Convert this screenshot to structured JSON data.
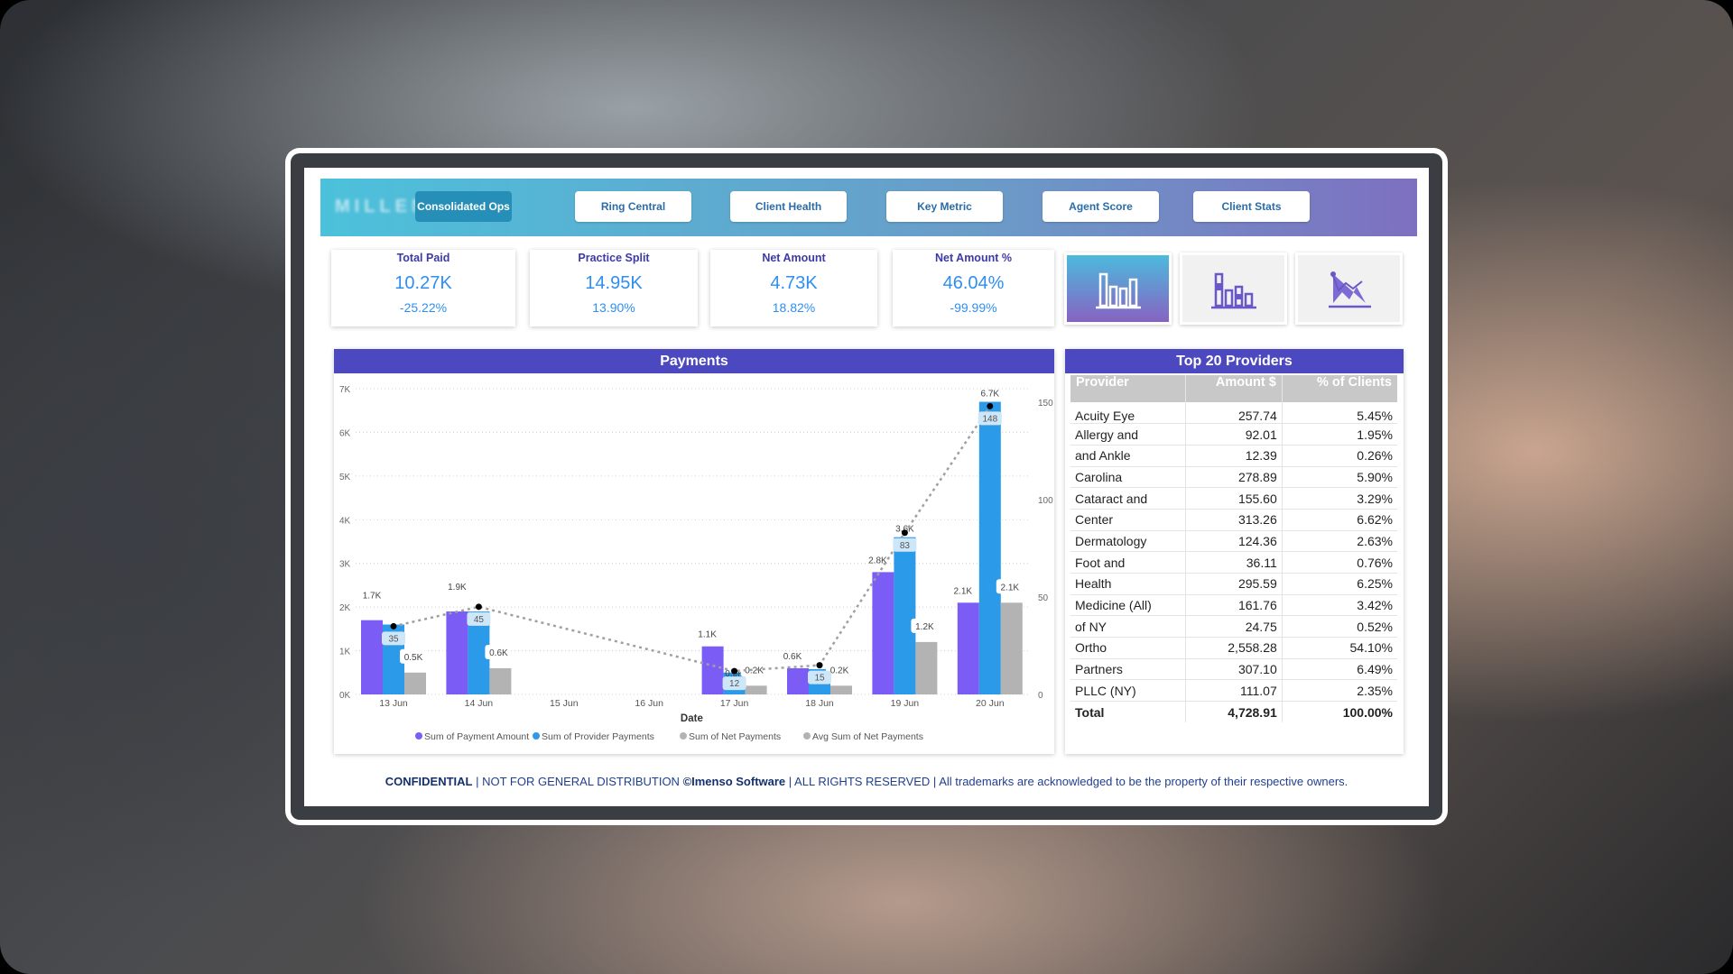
{
  "logo": "MILLENNIA",
  "nav": [
    {
      "label": "Consolidated Ops",
      "active": true
    },
    {
      "label": "Ring Central"
    },
    {
      "label": "Client Health"
    },
    {
      "label": "Key Metric"
    },
    {
      "label": "Agent Score"
    },
    {
      "label": "Client Stats"
    }
  ],
  "kpis": [
    {
      "title": "Total Paid",
      "value": "10.27K",
      "change": "-25.22%"
    },
    {
      "title": "Practice Split",
      "value": "14.95K",
      "change": "13.90%"
    },
    {
      "title": "Net Amount",
      "value": "4.73K",
      "change": "18.82%"
    },
    {
      "title": "Net Amount %",
      "value": "46.04%",
      "change": "-99.99%"
    }
  ],
  "view_tiles": [
    {
      "icon": "bar-chart-icon",
      "active": true
    },
    {
      "icon": "stacked-bar-chart-icon"
    },
    {
      "icon": "area-chart-icon"
    }
  ],
  "colors": {
    "header_start": "#4cc1db",
    "header_end": "#7e70c0",
    "panel_title": "#4b48c0",
    "payment": "#7b5cf5",
    "provider": "#2b9ae8",
    "net": "#b3b3b3",
    "line": "#a0a0a0"
  },
  "chart_data": {
    "type": "bar",
    "title": "Payments",
    "xlabel": "Date",
    "categories": [
      "13 Jun",
      "14 Jun",
      "15 Jun",
      "16 Jun",
      "17 Jun",
      "18 Jun",
      "19 Jun",
      "20 Jun"
    ],
    "ylim": [
      0,
      7000
    ],
    "yticks": [
      "0K",
      "1K",
      "2K",
      "3K",
      "4K",
      "5K",
      "6K",
      "7K"
    ],
    "y2lim": [
      0,
      157
    ],
    "y2ticks": [
      "0",
      "50",
      "100",
      "150"
    ],
    "grid": true,
    "legend": "bottom",
    "series": [
      {
        "name": "Sum of Payment Amount",
        "kind": "bar",
        "values": [
          1700,
          1900,
          0,
          0,
          1100,
          600,
          2800,
          2100
        ],
        "labels": [
          "1.7K",
          "1.9K",
          null,
          null,
          "1.1K",
          "0.6K",
          "2.8K",
          "2.1K"
        ]
      },
      {
        "name": "Sum of Provider Payments",
        "kind": "bar",
        "values": [
          1600,
          1900,
          0,
          0,
          500,
          580,
          3600,
          6700
        ],
        "labels": [
          null,
          null,
          null,
          null,
          "0.5K",
          null,
          "3.6K",
          "6.7K"
        ]
      },
      {
        "name": "Sum of Net Payments",
        "kind": "bar",
        "values": [
          500,
          600,
          0,
          0,
          200,
          200,
          1200,
          2100
        ],
        "labels": [
          "0.5K",
          "0.6K",
          null,
          null,
          "0.2K",
          "0.2K",
          "1.2K",
          "2.1K"
        ]
      },
      {
        "name": "Avg Sum of Net Payments",
        "kind": "line",
        "axis": "right",
        "values": [
          35,
          45,
          null,
          null,
          12,
          15,
          83,
          148
        ],
        "labels": [
          "35",
          "45",
          null,
          null,
          "12",
          "15",
          "83",
          "148"
        ]
      }
    ]
  },
  "table": {
    "title": "Top 20 Providers",
    "columns": [
      "Provider",
      "Amount $",
      "% of Clients"
    ],
    "rows": [
      [
        "Acuity Eye",
        "257.74",
        "5.45%"
      ],
      [
        "Allergy and",
        "92.01",
        "1.95%"
      ],
      [
        "and Ankle",
        "12.39",
        "0.26%"
      ],
      [
        "Carolina",
        "278.89",
        "5.90%"
      ],
      [
        "Cataract and",
        "155.60",
        "3.29%"
      ],
      [
        "Center",
        "313.26",
        "6.62%"
      ],
      [
        "Dermatology",
        "124.36",
        "2.63%"
      ],
      [
        "Foot and",
        "36.11",
        "0.76%"
      ],
      [
        "Health",
        "295.59",
        "6.25%"
      ],
      [
        "Medicine (All)",
        "161.76",
        "3.42%"
      ],
      [
        "of NY",
        "24.75",
        "0.52%"
      ],
      [
        "Ortho",
        "2,558.28",
        "54.10%"
      ],
      [
        "Partners",
        "307.10",
        "6.49%"
      ],
      [
        "PLLC (NY)",
        "111.07",
        "2.35%"
      ]
    ],
    "total": [
      "Total",
      "4,728.91",
      "100.00%"
    ]
  },
  "footer": {
    "confidential": "CONFIDENTIAL",
    "text1": " | NOT FOR GENERAL DISTRIBUTION ",
    "company": "©Imenso Software",
    "text2": " | ALL RIGHTS RESERVED | All trademarks are acknowledged to be the property of their respective owners."
  }
}
